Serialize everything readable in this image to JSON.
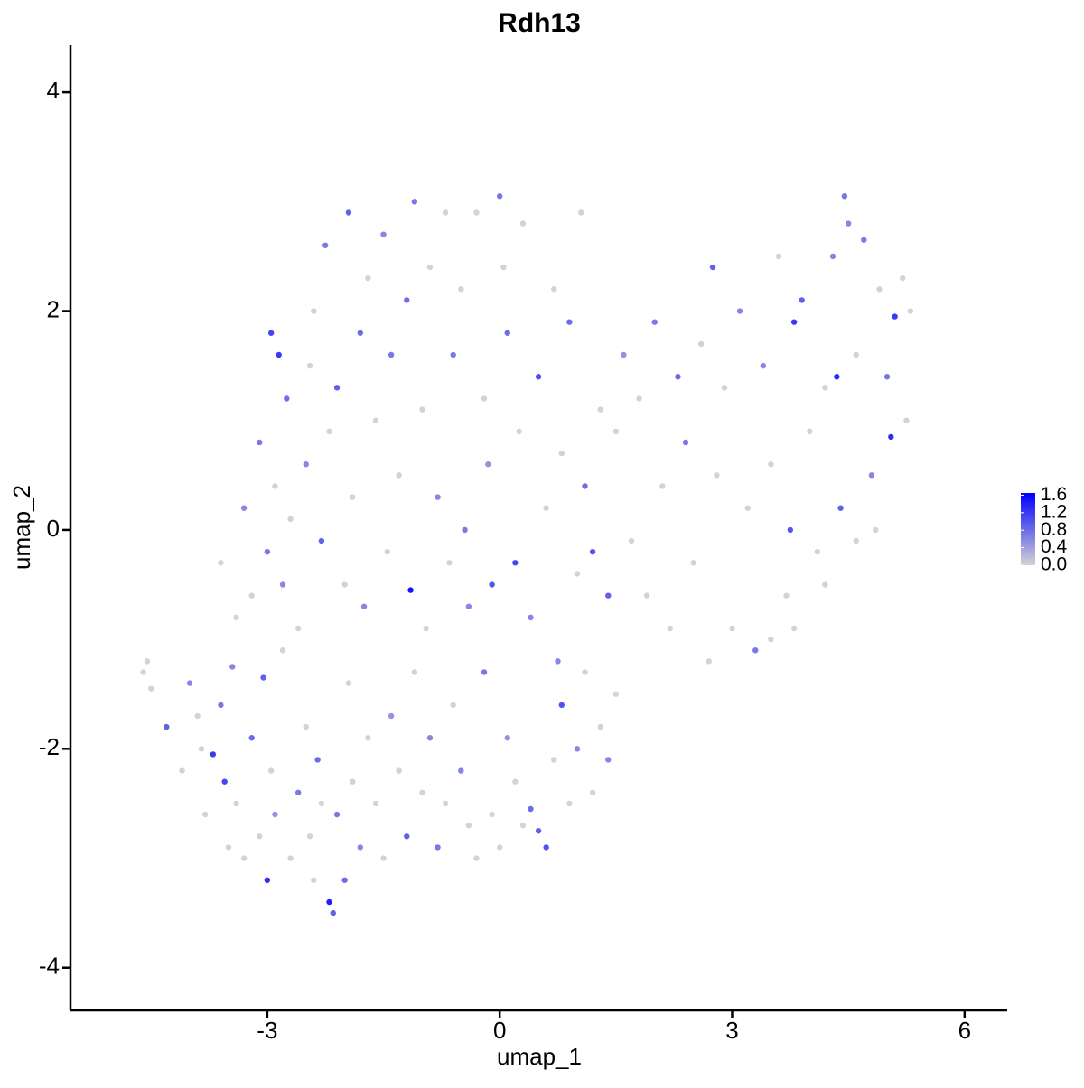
{
  "chart_data": {
    "type": "scatter",
    "title": "Rdh13",
    "x_label": "umap_1",
    "y_label": "umap_2",
    "xlim": [
      -5.54,
      6.55
    ],
    "ylim": [
      -4.39,
      4.43
    ],
    "xticks": [
      -3,
      0,
      3,
      6
    ],
    "yticks": [
      -4,
      -2,
      0,
      2,
      4
    ],
    "color_low": "#d3d3d3",
    "color_high": "#0000ff",
    "colorbar_lim": [
      0,
      1.65
    ],
    "colorbar_ticks": [
      {
        "value": 0,
        "label": "0.0"
      },
      0.4,
      0.8,
      1.2,
      1.6
    ],
    "x": [
      -4.6,
      -4.55,
      -4.5,
      -4.3,
      -4.1,
      -4.0,
      -3.9,
      -3.85,
      -3.8,
      -3.7,
      -3.6,
      -3.55,
      -3.5,
      -3.45,
      -3.4,
      -3.3,
      -3.2,
      -3.1,
      -3.05,
      -3.0,
      -2.95,
      -2.9,
      -2.8,
      -2.7,
      -2.6,
      -2.5,
      -2.45,
      -2.4,
      -2.35,
      -2.3,
      -2.2,
      -2.15,
      -2.1,
      -2.0,
      -1.95,
      -1.9,
      -1.8,
      -1.7,
      -1.6,
      -1.5,
      -1.4,
      -1.3,
      -1.2,
      -1.1,
      -1.0,
      -0.9,
      -0.8,
      -0.7,
      -0.6,
      -0.5,
      -0.4,
      -0.3,
      -0.2,
      -0.1,
      0.0,
      0.1,
      0.2,
      0.3,
      0.4,
      0.5,
      0.6,
      0.7,
      0.8,
      0.9,
      1.0,
      1.1,
      1.2,
      1.3,
      1.4,
      1.5,
      -3.6,
      -3.4,
      -3.3,
      -3.2,
      -3.1,
      -3.0,
      -2.95,
      -2.9,
      -2.85,
      -2.8,
      -2.75,
      -2.7,
      -2.6,
      -2.5,
      -2.45,
      -2.4,
      -2.3,
      -2.25,
      -2.2,
      -2.1,
      -2.0,
      -1.95,
      -1.9,
      -1.8,
      -1.75,
      -1.7,
      -1.6,
      -1.5,
      -1.45,
      -1.4,
      -1.3,
      -1.2,
      -1.15,
      -1.1,
      -1.0,
      -0.95,
      -0.9,
      -0.8,
      -0.7,
      -0.65,
      -0.6,
      -0.5,
      -0.45,
      -0.4,
      -0.3,
      -0.2,
      -0.15,
      -0.1,
      0.0,
      0.05,
      0.1,
      0.2,
      0.25,
      0.3,
      0.4,
      0.5,
      0.6,
      0.7,
      0.75,
      0.8,
      0.9,
      1.0,
      1.05,
      1.1,
      1.2,
      1.3,
      1.4,
      1.5,
      1.6,
      1.7,
      1.8,
      1.9,
      2.0,
      2.1,
      2.2,
      2.3,
      2.4,
      2.5,
      2.6,
      2.7,
      2.75,
      2.8,
      2.9,
      3.0,
      3.1,
      3.2,
      3.3,
      3.4,
      3.5,
      3.6,
      3.7,
      3.75,
      3.8,
      3.9,
      4.0,
      4.1,
      4.2,
      4.3,
      4.35,
      4.4,
      4.45,
      4.5,
      4.6,
      4.7,
      4.8,
      4.9,
      5.0,
      5.05,
      5.1,
      5.2,
      5.3,
      5.25,
      4.85,
      4.6,
      4.2,
      3.8,
      3.5
    ],
    "y": [
      -1.3,
      -1.2,
      -1.45,
      -1.8,
      -2.2,
      -1.4,
      -1.7,
      -2.0,
      -2.6,
      -2.05,
      -1.6,
      -2.3,
      -2.9,
      -1.25,
      -2.5,
      -3.0,
      -1.9,
      -2.8,
      -1.35,
      -3.2,
      -2.2,
      -2.6,
      -1.1,
      -3.0,
      -2.4,
      -1.8,
      -2.8,
      -3.2,
      -2.1,
      -2.5,
      -3.4,
      -3.5,
      -2.6,
      -3.2,
      -1.4,
      -2.3,
      -2.9,
      -1.9,
      -2.5,
      -3.0,
      -1.7,
      -2.2,
      -2.8,
      -1.3,
      -2.4,
      -1.9,
      -2.9,
      -2.5,
      -1.6,
      -2.2,
      -2.7,
      -3.0,
      -1.3,
      -2.6,
      -2.9,
      -1.9,
      -2.3,
      -2.7,
      -2.55,
      -2.75,
      -2.9,
      -2.1,
      -1.6,
      -2.5,
      -2.0,
      -1.3,
      -2.4,
      -1.8,
      -2.1,
      -1.5,
      -0.3,
      -0.8,
      0.2,
      -0.6,
      0.8,
      -0.2,
      1.8,
      0.4,
      1.6,
      -0.5,
      1.2,
      0.1,
      -0.9,
      0.6,
      1.5,
      2.0,
      -0.1,
      2.6,
      0.9,
      1.3,
      -0.5,
      2.9,
      0.3,
      1.8,
      -0.7,
      2.3,
      1.0,
      2.7,
      -0.2,
      1.6,
      0.5,
      2.1,
      -0.55,
      3.0,
      1.1,
      -0.9,
      2.4,
      0.3,
      2.9,
      -0.3,
      1.6,
      2.2,
      0.0,
      -0.7,
      2.9,
      1.2,
      0.6,
      -0.5,
      3.05,
      2.4,
      1.8,
      -0.3,
      0.9,
      2.8,
      -0.8,
      1.4,
      0.2,
      2.2,
      -1.2,
      0.7,
      1.9,
      -0.4,
      2.9,
      0.4,
      -0.2,
      1.1,
      -0.6,
      0.9,
      1.6,
      -0.1,
      1.2,
      -0.6,
      1.9,
      0.4,
      -0.9,
      1.4,
      0.8,
      -0.3,
      1.7,
      -1.2,
      2.4,
      0.5,
      1.3,
      -0.9,
      2.0,
      0.2,
      -1.1,
      1.5,
      0.6,
      2.5,
      -0.6,
      0.0,
      1.9,
      2.1,
      0.9,
      -0.2,
      1.3,
      2.5,
      1.4,
      0.2,
      3.05,
      2.8,
      1.6,
      2.65,
      0.5,
      2.2,
      1.4,
      0.85,
      1.95,
      2.3,
      2.0,
      1.0,
      0.0,
      -0.1,
      -0.5,
      -0.9,
      -1.0
    ],
    "values": [
      0,
      0,
      0,
      0.9,
      0,
      0.6,
      0,
      0,
      0,
      1.2,
      0.7,
      1.1,
      0,
      0.6,
      0,
      0,
      0.8,
      0,
      0.9,
      1.3,
      0,
      0.5,
      0,
      0,
      0.7,
      0,
      0,
      0,
      0.8,
      0,
      1.4,
      0.9,
      0.7,
      0.8,
      0,
      0,
      0.6,
      0,
      0,
      0,
      0.5,
      0,
      0.9,
      0,
      0,
      0.6,
      0.7,
      0,
      0,
      0.6,
      0,
      0,
      0.7,
      0,
      0,
      0.5,
      0,
      0,
      0.8,
      0.9,
      1.0,
      0,
      1.0,
      0,
      0.6,
      0,
      0,
      0,
      0.6,
      0,
      0,
      0,
      0.6,
      0,
      0.7,
      0.7,
      1.1,
      0,
      1.2,
      0.6,
      0.8,
      0,
      0,
      0.6,
      0,
      0,
      0.9,
      0.7,
      0,
      0.9,
      0,
      0.9,
      0,
      0.8,
      0.6,
      0,
      0,
      0.6,
      0,
      0.7,
      0,
      0.8,
      1.5,
      0.7,
      0,
      0,
      0,
      0.6,
      0,
      0,
      0.7,
      0,
      0.7,
      0.6,
      0,
      0,
      0.5,
      1.0,
      0.7,
      0,
      0.8,
      1.1,
      0,
      0,
      0.6,
      1.0,
      0,
      0,
      0.6,
      0,
      0.8,
      0,
      0,
      0.8,
      1.0,
      0,
      0.9,
      0,
      0.5,
      0,
      0,
      0,
      0.7,
      0,
      0,
      0.8,
      0.7,
      0,
      0,
      0,
      0.9,
      0,
      0,
      0,
      0.6,
      0,
      0.7,
      0.6,
      0,
      0,
      0,
      1.0,
      1.2,
      0.9,
      0,
      0,
      0,
      0.6,
      1.3,
      0.9,
      0.7,
      0.6,
      0,
      0.7,
      0.6,
      0,
      0.7,
      1.3,
      1.2,
      0,
      0,
      0,
      0,
      0,
      0,
      0,
      0
    ]
  }
}
